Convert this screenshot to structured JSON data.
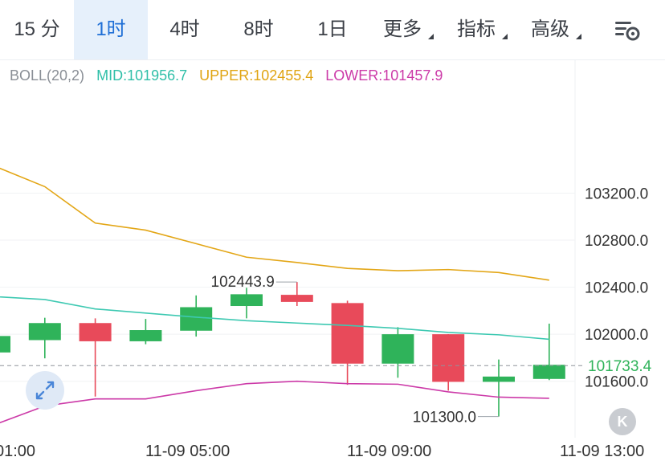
{
  "tabs": [
    {
      "label": "15 分",
      "active": false,
      "dropdown": false
    },
    {
      "label": "1时",
      "active": true,
      "dropdown": false
    },
    {
      "label": "4时",
      "active": false,
      "dropdown": false
    },
    {
      "label": "8时",
      "active": false,
      "dropdown": false
    },
    {
      "label": "1日",
      "active": false,
      "dropdown": false
    },
    {
      "label": "更多",
      "active": false,
      "dropdown": true
    },
    {
      "label": "指标",
      "active": false,
      "dropdown": true
    },
    {
      "label": "高级",
      "active": false,
      "dropdown": true
    }
  ],
  "settings_icon": "chart-settings-icon",
  "legend": {
    "indicator": "BOLL(20,2)",
    "mid": "MID:101956.7",
    "upper": "UPPER:102455.4",
    "lower": "LOWER:101457.9"
  },
  "colors": {
    "up": "#2fb35a",
    "down": "#e84a5a",
    "mid": "#3ec9b2",
    "upper": "#e3a616",
    "lower": "#cc3aa8",
    "accent": "#1f6fd6"
  },
  "x_labels": [
    "01:00",
    "11-09 05:00",
    "11-09 09:00",
    "11-09 13:00"
  ],
  "fab_icon": "expand-icon",
  "k_button": "K",
  "chart_data": {
    "type": "candlestick",
    "xlabel": "",
    "ylabel": "",
    "ylim": [
      101120,
      104330
    ],
    "y_ticks": [
      "103200.0",
      "102800.0",
      "102400.0",
      "102000.0",
      "101600.0"
    ],
    "y_tick_values": [
      103200,
      102800,
      102400,
      102000,
      101600
    ],
    "last_price": "101733.4",
    "last_price_value": 101733.4,
    "max_label": "102443.9",
    "max_value": 102443.9,
    "min_label": "101300.0",
    "min_value": 101300.0,
    "candles": [
      {
        "open": 101845,
        "close": 101985,
        "high": 101985,
        "low": 101770
      },
      {
        "open": 101950,
        "close": 102095,
        "high": 102140,
        "low": 101795
      },
      {
        "open": 102095,
        "close": 101940,
        "high": 102135,
        "low": 101470
      },
      {
        "open": 101940,
        "close": 102035,
        "high": 102130,
        "low": 101915
      },
      {
        "open": 102030,
        "close": 102230,
        "high": 102330,
        "low": 101980
      },
      {
        "open": 102240,
        "close": 102340,
        "high": 102395,
        "low": 102135
      },
      {
        "open": 102335,
        "close": 102275,
        "high": 102444,
        "low": 102240
      },
      {
        "open": 102265,
        "close": 101750,
        "high": 102285,
        "low": 101570
      },
      {
        "open": 101750,
        "close": 102000,
        "high": 102060,
        "low": 101630
      },
      {
        "open": 102000,
        "close": 101595,
        "high": 102000,
        "low": 101520
      },
      {
        "open": 101595,
        "close": 101640,
        "high": 101785,
        "low": 101300
      },
      {
        "open": 101620,
        "close": 101740,
        "high": 102090,
        "low": 101610
      }
    ],
    "series": [
      {
        "name": "UPPER",
        "values": [
          103430,
          103255,
          102945,
          102885,
          102770,
          102655,
          102610,
          102560,
          102540,
          102550,
          102525,
          102460
        ]
      },
      {
        "name": "MID",
        "values": [
          102320,
          102295,
          102215,
          102180,
          102145,
          102115,
          102095,
          102075,
          102050,
          102015,
          101995,
          101957
        ]
      },
      {
        "name": "LOWER",
        "values": [
          101230,
          101390,
          101450,
          101450,
          101520,
          101580,
          101600,
          101580,
          101575,
          101510,
          101465,
          101455
        ]
      }
    ]
  }
}
